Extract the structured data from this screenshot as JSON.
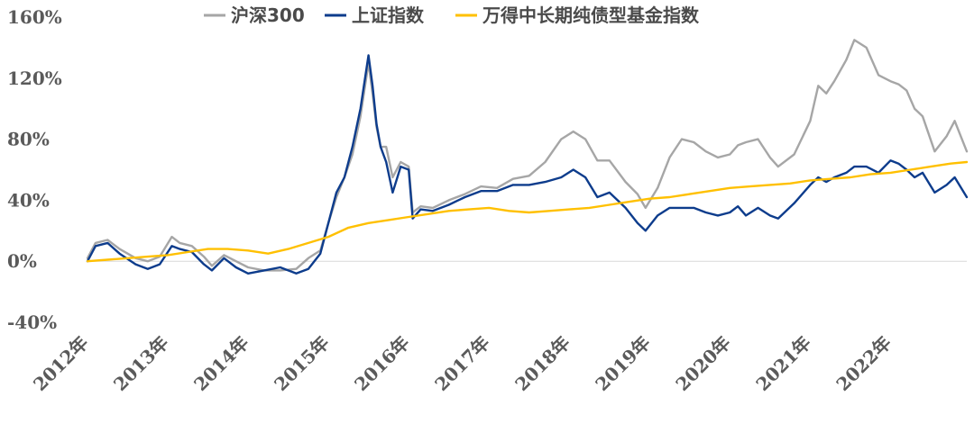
{
  "chart_data": {
    "type": "line",
    "title": "",
    "xlabel": "",
    "ylabel": "",
    "ylim": [
      -40,
      160
    ],
    "yticks": [
      -40,
      0,
      40,
      80,
      120,
      160
    ],
    "ytick_labels": [
      "-40%",
      "0%",
      "40%",
      "80%",
      "120%",
      "160%"
    ],
    "xlim": [
      2012.0,
      2022.95
    ],
    "xtick_positions": [
      2012,
      2013,
      2014,
      2015,
      2016,
      2017,
      2018,
      2019,
      2020,
      2021,
      2022
    ],
    "xtick_labels": [
      "2012年",
      "2013年",
      "2014年",
      "2015年",
      "2016年",
      "2017年",
      "2018年",
      "2019年",
      "2020年",
      "2021年",
      "2022年"
    ],
    "legend_position": "top",
    "series": [
      {
        "name": "沪深300",
        "color": "#a6a6a6",
        "x": [
          2012.0,
          2012.1,
          2012.25,
          2012.4,
          2012.6,
          2012.75,
          2012.9,
          2013.05,
          2013.15,
          2013.3,
          2013.45,
          2013.55,
          2013.7,
          2013.85,
          2014.0,
          2014.2,
          2014.4,
          2014.6,
          2014.75,
          2014.9,
          2015.0,
          2015.1,
          2015.2,
          2015.3,
          2015.4,
          2015.5,
          2015.55,
          2015.6,
          2015.65,
          2015.72,
          2015.8,
          2015.9,
          2016.0,
          2016.05,
          2016.15,
          2016.3,
          2016.5,
          2016.7,
          2016.9,
          2017.1,
          2017.3,
          2017.5,
          2017.7,
          2017.9,
          2018.05,
          2018.2,
          2018.35,
          2018.5,
          2018.7,
          2018.85,
          2018.95,
          2019.1,
          2019.25,
          2019.4,
          2019.55,
          2019.7,
          2019.85,
          2020.0,
          2020.1,
          2020.2,
          2020.35,
          2020.5,
          2020.6,
          2020.8,
          2021.0,
          2021.1,
          2021.2,
          2021.3,
          2021.45,
          2021.55,
          2021.7,
          2021.85,
          2022.0,
          2022.1,
          2022.2,
          2022.3,
          2022.4,
          2022.55,
          2022.7,
          2022.8,
          2022.95
        ],
        "y": [
          2,
          12,
          14,
          8,
          2,
          0,
          3,
          16,
          12,
          10,
          3,
          -3,
          4,
          0,
          -4,
          -6,
          -6,
          -5,
          2,
          7,
          25,
          42,
          55,
          70,
          95,
          130,
          110,
          88,
          75,
          75,
          55,
          65,
          62,
          32,
          36,
          35,
          40,
          44,
          49,
          48,
          54,
          56,
          65,
          80,
          85,
          80,
          66,
          66,
          52,
          44,
          35,
          48,
          68,
          80,
          78,
          72,
          68,
          70,
          76,
          78,
          80,
          68,
          62,
          70,
          92,
          115,
          110,
          118,
          132,
          145,
          140,
          122,
          118,
          116,
          112,
          100,
          95,
          72,
          82,
          92,
          72
        ]
      },
      {
        "name": "上证指数",
        "color": "#0d3c8c",
        "x": [
          2012.0,
          2012.1,
          2012.25,
          2012.4,
          2012.6,
          2012.75,
          2012.9,
          2013.05,
          2013.15,
          2013.3,
          2013.45,
          2013.55,
          2013.7,
          2013.85,
          2014.0,
          2014.2,
          2014.4,
          2014.6,
          2014.75,
          2014.9,
          2015.0,
          2015.1,
          2015.2,
          2015.3,
          2015.4,
          2015.5,
          2015.55,
          2015.6,
          2015.65,
          2015.72,
          2015.8,
          2015.9,
          2016.0,
          2016.05,
          2016.15,
          2016.3,
          2016.5,
          2016.7,
          2016.9,
          2017.1,
          2017.3,
          2017.5,
          2017.7,
          2017.9,
          2018.05,
          2018.2,
          2018.35,
          2018.5,
          2018.7,
          2018.85,
          2018.95,
          2019.1,
          2019.25,
          2019.4,
          2019.55,
          2019.7,
          2019.85,
          2020.0,
          2020.1,
          2020.2,
          2020.35,
          2020.5,
          2020.6,
          2020.8,
          2021.0,
          2021.1,
          2021.2,
          2021.3,
          2021.45,
          2021.55,
          2021.7,
          2021.85,
          2022.0,
          2022.1,
          2022.2,
          2022.3,
          2022.4,
          2022.55,
          2022.7,
          2022.8,
          2022.95
        ],
        "y": [
          0,
          10,
          12,
          5,
          -2,
          -5,
          -2,
          10,
          8,
          6,
          -2,
          -6,
          2,
          -4,
          -8,
          -6,
          -4,
          -8,
          -5,
          5,
          25,
          45,
          55,
          75,
          100,
          135,
          115,
          90,
          75,
          65,
          45,
          62,
          60,
          28,
          34,
          33,
          37,
          42,
          46,
          46,
          50,
          50,
          52,
          55,
          60,
          55,
          42,
          45,
          35,
          25,
          20,
          30,
          35,
          35,
          35,
          32,
          30,
          32,
          36,
          30,
          35,
          30,
          28,
          38,
          50,
          55,
          52,
          55,
          58,
          62,
          62,
          58,
          66,
          64,
          60,
          55,
          58,
          45,
          50,
          55,
          42
        ]
      },
      {
        "name": "万得中长期纯债型基金指数",
        "color": "#ffc000",
        "x": [
          2012.0,
          2012.25,
          2012.5,
          2012.75,
          2013.0,
          2013.25,
          2013.5,
          2013.75,
          2014.0,
          2014.25,
          2014.5,
          2014.75,
          2015.0,
          2015.25,
          2015.5,
          2015.75,
          2016.0,
          2016.25,
          2016.5,
          2016.75,
          2017.0,
          2017.25,
          2017.5,
          2017.75,
          2018.0,
          2018.25,
          2018.5,
          2018.75,
          2019.0,
          2019.25,
          2019.5,
          2019.75,
          2020.0,
          2020.25,
          2020.5,
          2020.75,
          2021.0,
          2021.25,
          2021.5,
          2021.75,
          2022.0,
          2022.25,
          2022.5,
          2022.75,
          2022.95
        ],
        "y": [
          0,
          1,
          2,
          3,
          4,
          6,
          8,
          8,
          7,
          5,
          8,
          12,
          16,
          22,
          25,
          27,
          29,
          31,
          33,
          34,
          35,
          33,
          32,
          33,
          34,
          35,
          37,
          39,
          41,
          42,
          44,
          46,
          48,
          49,
          50,
          51,
          53,
          54,
          55,
          57,
          58,
          60,
          62,
          64,
          65
        ]
      }
    ]
  }
}
